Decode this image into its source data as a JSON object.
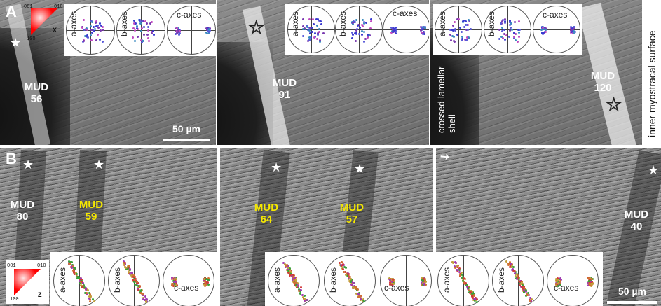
{
  "figure": {
    "panel_a_letter": "A",
    "panel_b_letter": "B",
    "side_label": "inner myostracal surface",
    "shell_label_line1": "crossed-lamellar",
    "shell_label_line2": "shell",
    "scale_top": "50 µm",
    "scale_bottom": "50 µm"
  },
  "color_keys": {
    "top": {
      "c001": "001",
      "c010": "010",
      "c100": "100",
      "axis": "X"
    },
    "bottom": {
      "c001": "001",
      "c010": "010",
      "c100": "100",
      "axis": "Z"
    }
  },
  "pole_figures": {
    "a_axes": "a-axes",
    "b_axes": "b-axes",
    "c_axes": "c-axes"
  },
  "mud_labels": {
    "a1": {
      "name": "MUD",
      "value": "56"
    },
    "a2": {
      "name": "MUD",
      "value": "91"
    },
    "a3": {
      "name": "MUD",
      "value": "120"
    },
    "b1": {
      "name": "MUD",
      "value": "80"
    },
    "b2": {
      "name": "MUD",
      "value": "59"
    },
    "b3": {
      "name": "MUD",
      "value": "64"
    },
    "b4": {
      "name": "MUD",
      "value": "57"
    },
    "b5": {
      "name": "MUD",
      "value": "40"
    }
  },
  "colors": {
    "mud_white": "#ffffff",
    "mud_yellow": "#f5e800"
  }
}
